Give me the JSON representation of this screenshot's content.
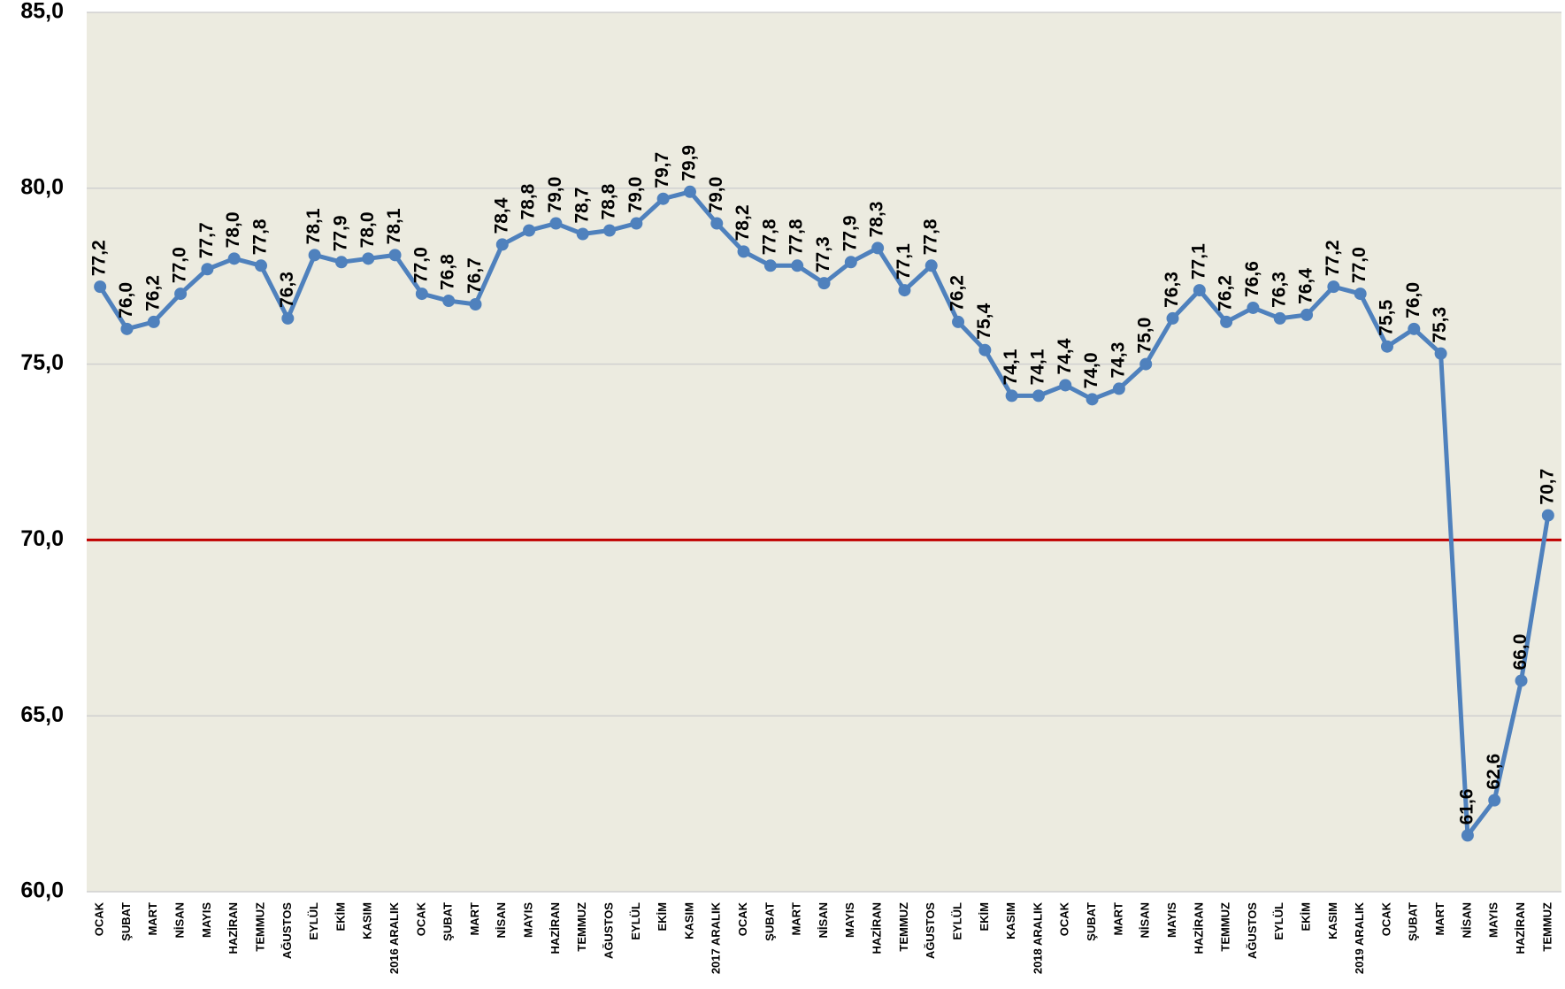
{
  "chart_data": {
    "type": "line",
    "categories": [
      "OCAK",
      "ŞUBAT",
      "MART",
      "NİSAN",
      "MAYIS",
      "HAZİRAN",
      "TEMMUZ",
      "AĞUSTOS",
      "EYLÜL",
      "EKİM",
      "KASIM",
      "2016 ARALIK",
      "OCAK",
      "ŞUBAT",
      "MART",
      "NİSAN",
      "MAYIS",
      "HAZİRAN",
      "TEMMUZ",
      "AĞUSTOS",
      "EYLÜL",
      "EKİM",
      "KASIM",
      "2017 ARALIK",
      "OCAK",
      "ŞUBAT",
      "MART",
      "NİSAN",
      "MAYIS",
      "HAZİRAN",
      "TEMMUZ",
      "AĞUSTOS",
      "EYLÜL",
      "EKİM",
      "KASIM",
      "2018 ARALIK",
      "OCAK",
      "ŞUBAT",
      "MART",
      "NİSAN",
      "MAYIS",
      "HAZİRAN",
      "TEMMUZ",
      "AĞUSTOS",
      "EYLÜL",
      "EKİM",
      "KASIM",
      "2019 ARALIK",
      "OCAK",
      "ŞUBAT",
      "MART",
      "NİSAN",
      "MAYIS",
      "HAZİRAN",
      "TEMMUZ"
    ],
    "values": [
      77.2,
      76.0,
      76.2,
      77.0,
      77.7,
      78.0,
      77.8,
      76.3,
      78.1,
      77.9,
      78.0,
      78.1,
      77.0,
      76.8,
      76.7,
      78.4,
      78.8,
      79.0,
      78.7,
      78.8,
      79.0,
      79.7,
      79.9,
      79.0,
      78.2,
      77.8,
      77.8,
      77.3,
      77.9,
      78.3,
      77.1,
      77.8,
      76.2,
      75.4,
      74.1,
      74.1,
      74.4,
      74.0,
      74.3,
      75.0,
      76.3,
      77.1,
      76.2,
      76.6,
      76.3,
      76.4,
      77.2,
      77.0,
      75.5,
      76.0,
      75.3,
      61.6,
      62.6,
      66.0,
      70.7
    ],
    "value_labels": [
      "77,2",
      "76,0",
      "76,2",
      "77,0",
      "77,7",
      "78,0",
      "77,8",
      "76,3",
      "78,1",
      "77,9",
      "78,0",
      "78,1",
      "77,0",
      "76,8",
      "76,7",
      "78,4",
      "78,8",
      "79,0",
      "78,7",
      "78,8",
      "79,0",
      "79,7",
      "79,9",
      "79,0",
      "78,2",
      "77,8",
      "77,8",
      "77,3",
      "77,9",
      "78,3",
      "77,1",
      "77,8",
      "76,2",
      "75,4",
      "74,1",
      "74,1",
      "74,4",
      "74,0",
      "74,3",
      "75,0",
      "76,3",
      "77,1",
      "76,2",
      "76,6",
      "76,3",
      "76,4",
      "77,2",
      "77,0",
      "75,5",
      "76,0",
      "75,3",
      "61,6",
      "62,6",
      "66,0",
      "70,7"
    ],
    "color": "#4f81bd",
    "ylim": [
      60,
      85
    ],
    "yticks": [
      {
        "value": 60,
        "label": "60,0"
      },
      {
        "value": 65,
        "label": "65,0"
      },
      {
        "value": 70,
        "label": "70,0"
      },
      {
        "value": 75,
        "label": "75,0"
      },
      {
        "value": 80,
        "label": "80,0"
      },
      {
        "value": 85,
        "label": "85,0"
      }
    ],
    "grid": true,
    "reference_line": {
      "value": 70,
      "color": "#c00000"
    }
  }
}
